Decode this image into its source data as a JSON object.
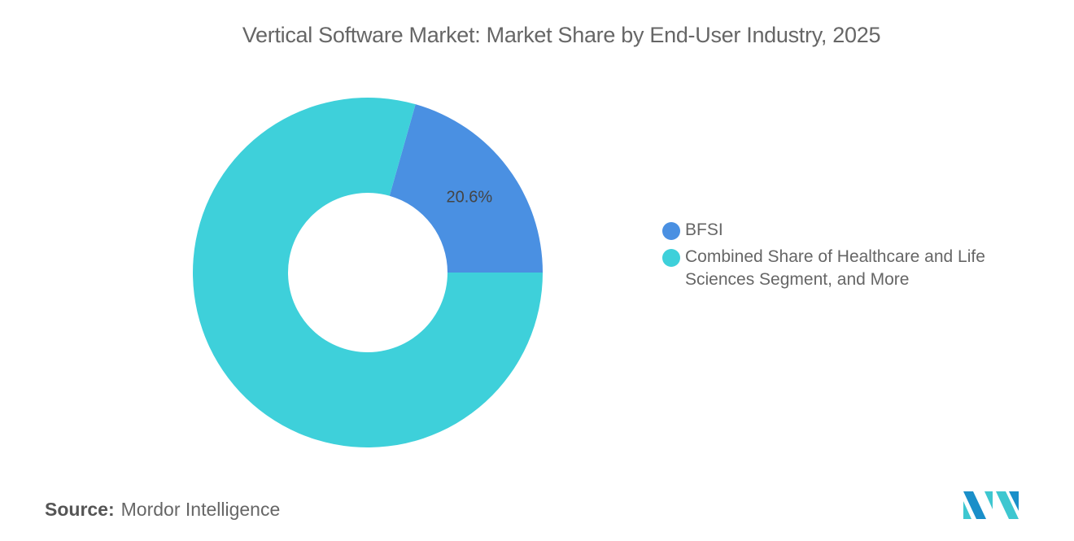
{
  "chart_data": {
    "type": "pie",
    "style": "donut",
    "title": "Vertical Software Market: Market Share by End-User Industry, 2025",
    "categories": [
      "BFSI",
      "Combined Share of Healthcare and Life Sciences Segment, and More"
    ],
    "values": [
      20.6,
      79.4
    ],
    "data_labels": [
      "20.6%",
      ""
    ],
    "colors": [
      "#4a90e2",
      "#3ed0da"
    ],
    "legend_position": "right"
  },
  "source": {
    "label": "Source:",
    "value": "Mordor Intelligence"
  },
  "logo": {
    "name": "mordor-intelligence-logo",
    "colors": [
      "#1a8fc9",
      "#3ec7d0"
    ]
  }
}
